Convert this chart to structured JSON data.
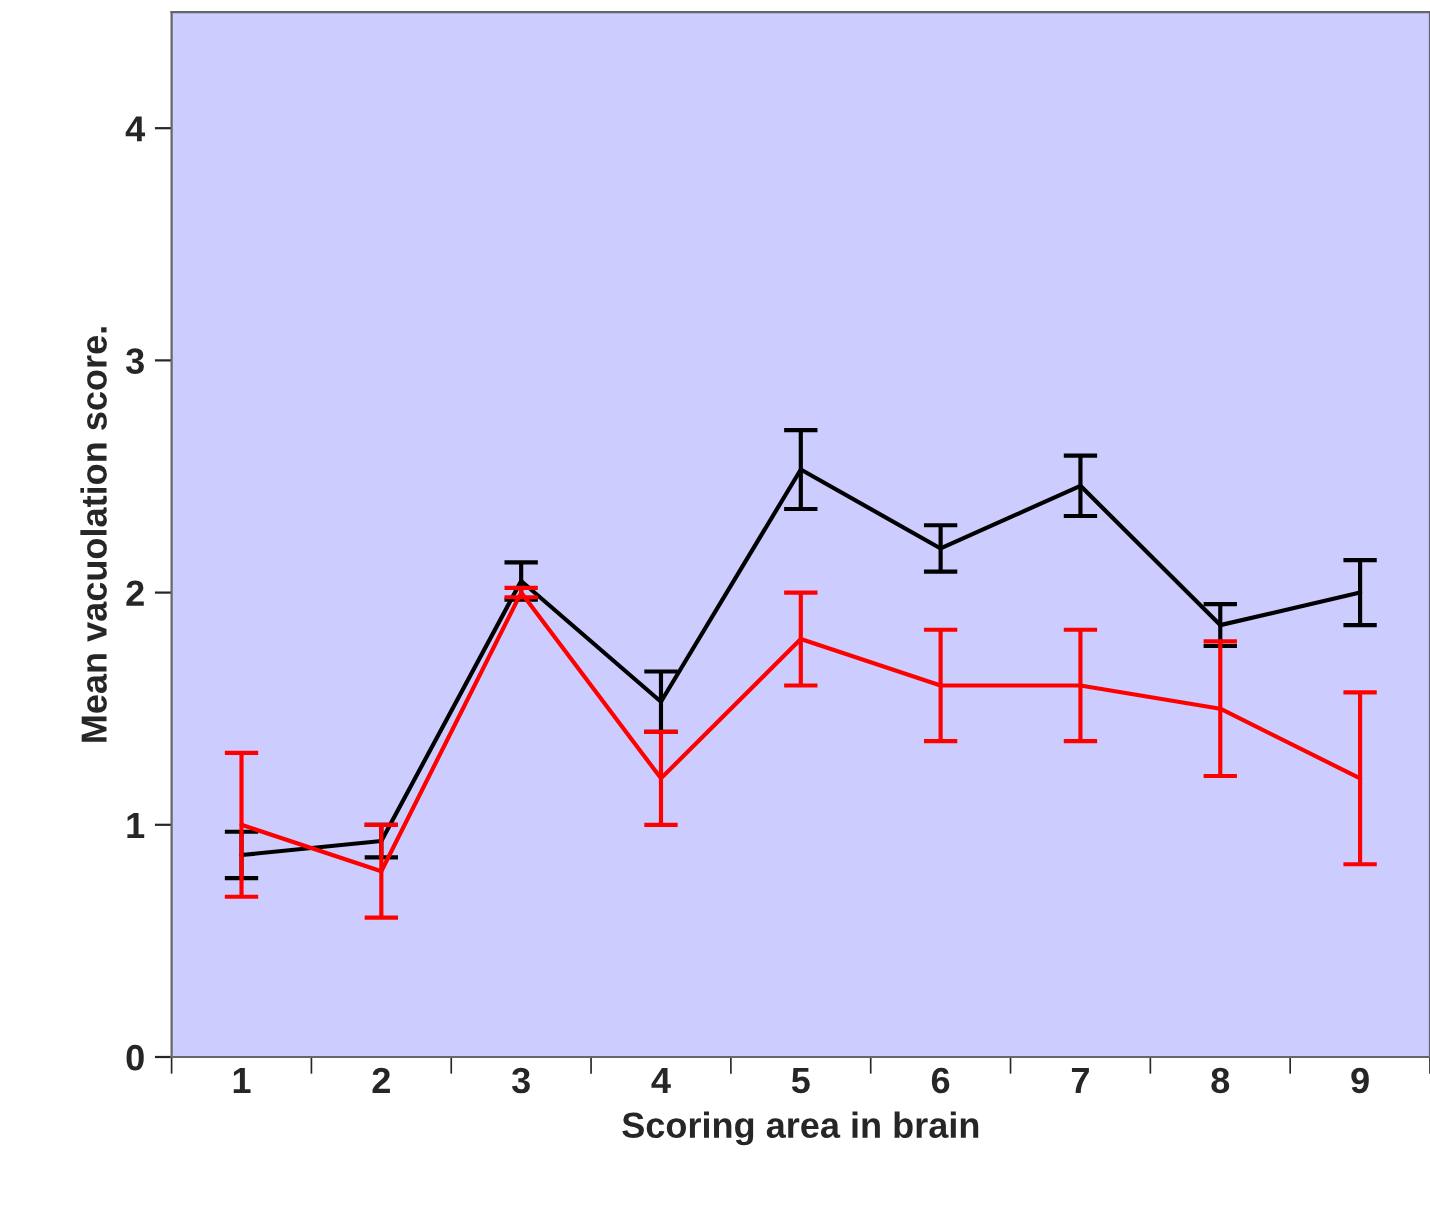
{
  "chart_data": {
    "type": "line",
    "xlabel": "Scoring area in brain",
    "ylabel": "Mean vacuolation score.",
    "categories": [
      "1",
      "2",
      "3",
      "4",
      "5",
      "6",
      "7",
      "8",
      "9"
    ],
    "series": [
      {
        "color": "#000000",
        "values": [
          0.87,
          0.93,
          2.05,
          1.53,
          2.53,
          2.19,
          2.46,
          1.86,
          2.0
        ],
        "errors": [
          0.1,
          0.07,
          0.08,
          0.13,
          0.17,
          0.1,
          0.13,
          0.09,
          0.14
        ]
      },
      {
        "color": "#ff0000",
        "values": [
          1.0,
          0.8,
          2.0,
          1.2,
          1.8,
          1.6,
          1.6,
          1.5,
          1.2
        ],
        "errors": [
          0.31,
          0.2,
          0.02,
          0.2,
          0.2,
          0.24,
          0.24,
          0.29,
          0.37
        ]
      }
    ],
    "ylim": [
      0,
      4.5
    ],
    "yticks": [
      0,
      1,
      2,
      3,
      4
    ],
    "grid": false,
    "marker": "none",
    "line_style": "solid"
  }
}
